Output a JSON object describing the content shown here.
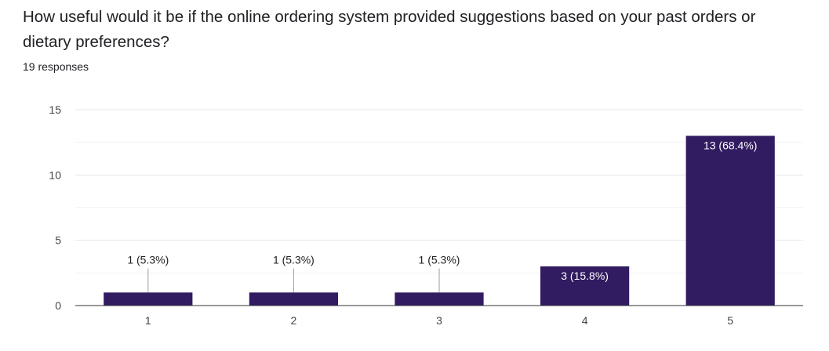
{
  "question": {
    "title": "How useful would it be if the online ordering system provided suggestions based on your past orders or dietary preferences?",
    "responses": "19 responses"
  },
  "colors": {
    "bar": "#311b61",
    "grid": "#e6e6e6",
    "axis": "#333333",
    "label_outside": "#202124",
    "label_inside": "#ffffff"
  },
  "chart_data": {
    "type": "bar",
    "title": "",
    "xlabel": "",
    "ylabel": "",
    "categories": [
      "1",
      "2",
      "3",
      "4",
      "5"
    ],
    "values": [
      1,
      1,
      1,
      3,
      13
    ],
    "data_labels": [
      "1 (5.3%)",
      "1 (5.3%)",
      "1 (5.3%)",
      "3 (15.8%)",
      "13 (68.4%)"
    ],
    "ylim": [
      0,
      15
    ],
    "yticks": [
      0,
      5,
      10,
      15
    ],
    "minor_gridlines": true,
    "legend": "none"
  }
}
